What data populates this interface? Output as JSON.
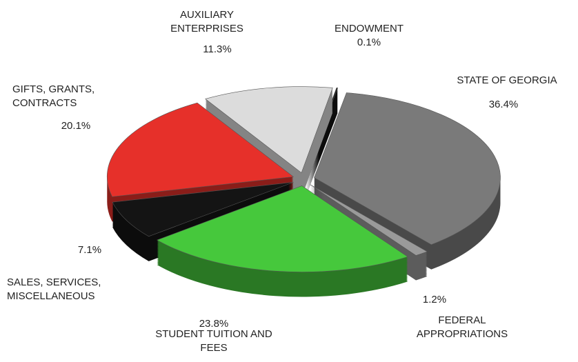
{
  "chart_data": {
    "type": "pie",
    "categories": [
      "STATE OF GEORGIA",
      "FEDERAL APPROPRIATIONS",
      "STUDENT TUITION AND FEES",
      "SALES, SERVICES, MISCELLANEOUS",
      "GIFTS, GRANTS, CONTRACTS",
      "AUXILIARY ENTERPRISES",
      "ENDOWMENT"
    ],
    "values": [
      36.4,
      1.2,
      23.8,
      7.1,
      20.1,
      11.3,
      0.1
    ],
    "value_labels": [
      "36.4%",
      "1.2%",
      "23.8%",
      "7.1%",
      "20.1%",
      "11.3%",
      "0.1%"
    ],
    "colors": [
      "#7a7a7a",
      "#9a9a9a",
      "#46c83c",
      "#141414",
      "#e6302a",
      "#dcdcdc",
      "#141414"
    ]
  }
}
